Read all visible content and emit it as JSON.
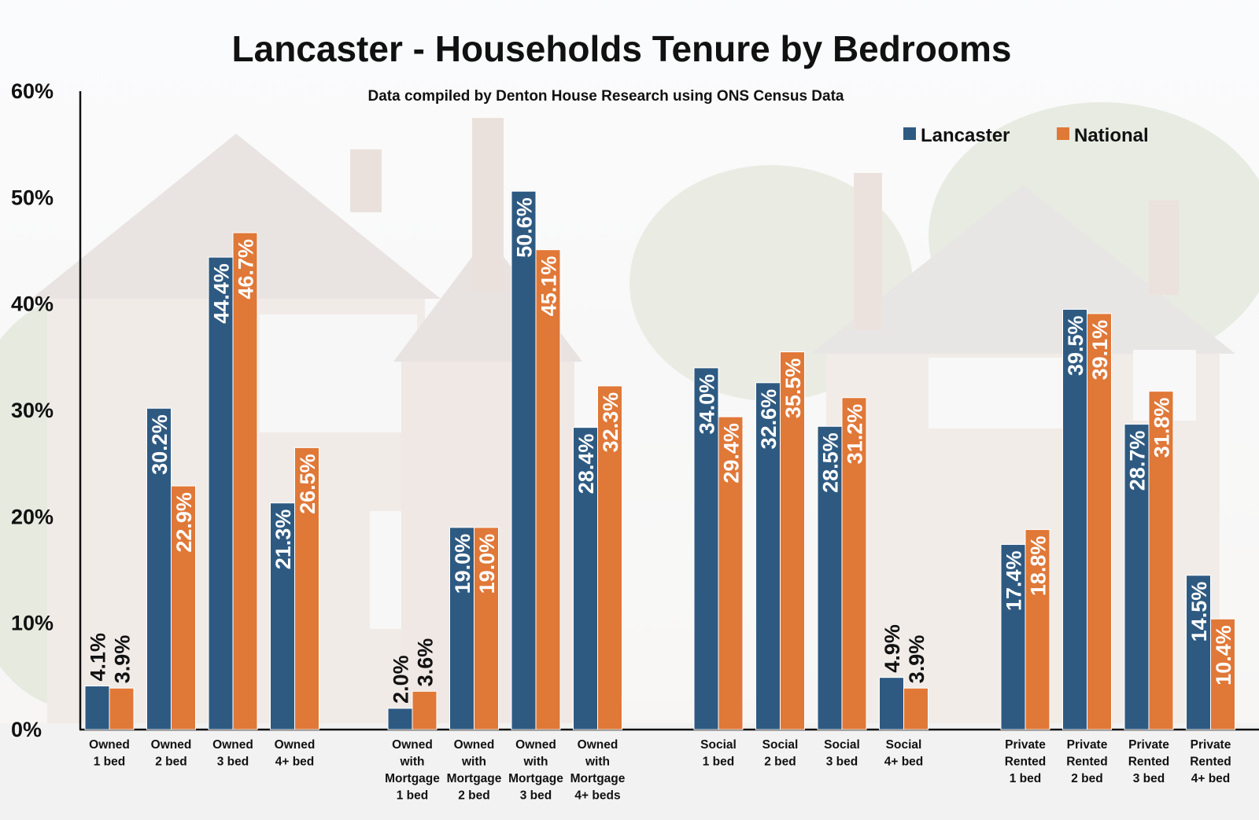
{
  "chart_data": {
    "type": "bar",
    "title": "Lancaster - Households Tenure by Bedrooms",
    "subtitle": "Data compiled by Denton House Research using ONS Census Data",
    "xlabel": "",
    "ylabel": "",
    "ylim": [
      0,
      60
    ],
    "yticks": [
      "0%",
      "10%",
      "20%",
      "30%",
      "40%",
      "50%",
      "60%"
    ],
    "legend": "top-right",
    "grid": false,
    "colors": {
      "Lancaster": "#2e5a82",
      "National": "#e07838"
    },
    "groups": [
      {
        "categories": [
          [
            "Owned",
            "1 bed"
          ],
          [
            "Owned",
            "2 bed"
          ],
          [
            "Owned",
            "3 bed"
          ],
          [
            "Owned",
            "4+ bed"
          ]
        ],
        "lancaster": [
          4.1,
          30.2,
          44.4,
          21.3
        ],
        "national": [
          3.9,
          22.9,
          46.7,
          26.5
        ]
      },
      {
        "categories": [
          [
            "Owned",
            "with",
            "Mortgage",
            "1 bed"
          ],
          [
            "Owned",
            "with",
            "Mortgage",
            "2 bed"
          ],
          [
            "Owned",
            "with",
            "Mortgage",
            "3 bed"
          ],
          [
            "Owned",
            "with",
            "Mortgage",
            "4+ beds"
          ]
        ],
        "lancaster": [
          2.0,
          19.0,
          50.6,
          28.4
        ],
        "national": [
          3.6,
          19.0,
          45.1,
          32.3
        ]
      },
      {
        "categories": [
          [
            "Social",
            "1 bed"
          ],
          [
            "Social",
            "2 bed"
          ],
          [
            "Social",
            "3 bed"
          ],
          [
            "Social",
            "4+ bed"
          ]
        ],
        "lancaster": [
          34.0,
          32.6,
          28.5,
          4.9
        ],
        "national": [
          29.4,
          35.5,
          31.2,
          3.9
        ]
      },
      {
        "categories": [
          [
            "Private",
            "Rented",
            "1 bed"
          ],
          [
            "Private",
            "Rented",
            "2 bed"
          ],
          [
            "Private",
            "Rented",
            "3 bed"
          ],
          [
            "Private",
            "Rented",
            "4+ bed"
          ]
        ],
        "lancaster": [
          17.4,
          39.5,
          28.7,
          14.5
        ],
        "national": [
          18.8,
          39.1,
          31.8,
          10.4
        ]
      }
    ],
    "series": [
      {
        "name": "Lancaster"
      },
      {
        "name": "National"
      }
    ]
  }
}
